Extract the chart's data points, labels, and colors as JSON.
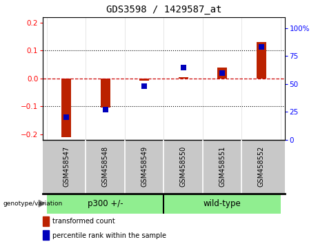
{
  "title": "GDS3598 / 1429587_at",
  "samples": [
    "GSM458547",
    "GSM458548",
    "GSM458549",
    "GSM458550",
    "GSM458551",
    "GSM458552"
  ],
  "red_values": [
    -0.21,
    -0.105,
    -0.008,
    0.005,
    0.04,
    0.13
  ],
  "blue_values_pct": [
    15,
    22,
    43,
    60,
    55,
    78
  ],
  "group1_label": "p300 +/-",
  "group2_label": "wild-type",
  "group1_indices": [
    0,
    1,
    2
  ],
  "group2_indices": [
    3,
    4,
    5
  ],
  "group_label": "genotype/variation",
  "group_color": "#90EE90",
  "ylim_left": [
    -0.22,
    0.22
  ],
  "yticks_left": [
    -0.2,
    -0.1,
    0.0,
    0.1,
    0.2
  ],
  "ylim_right": [
    0,
    110
  ],
  "yticks_right": [
    0,
    25,
    50,
    75,
    100
  ],
  "ytick_labels_right": [
    "0",
    "25",
    "50",
    "75",
    "100%"
  ],
  "bar_color": "#BB2200",
  "dot_color": "#0000BB",
  "zero_line_color": "#CC0000",
  "grid_color": "black",
  "background_color": "white",
  "xlabel_bg": "#C8C8C8",
  "bar_width": 0.25,
  "dot_size": 35,
  "legend_items": [
    "transformed count",
    "percentile rank within the sample"
  ]
}
